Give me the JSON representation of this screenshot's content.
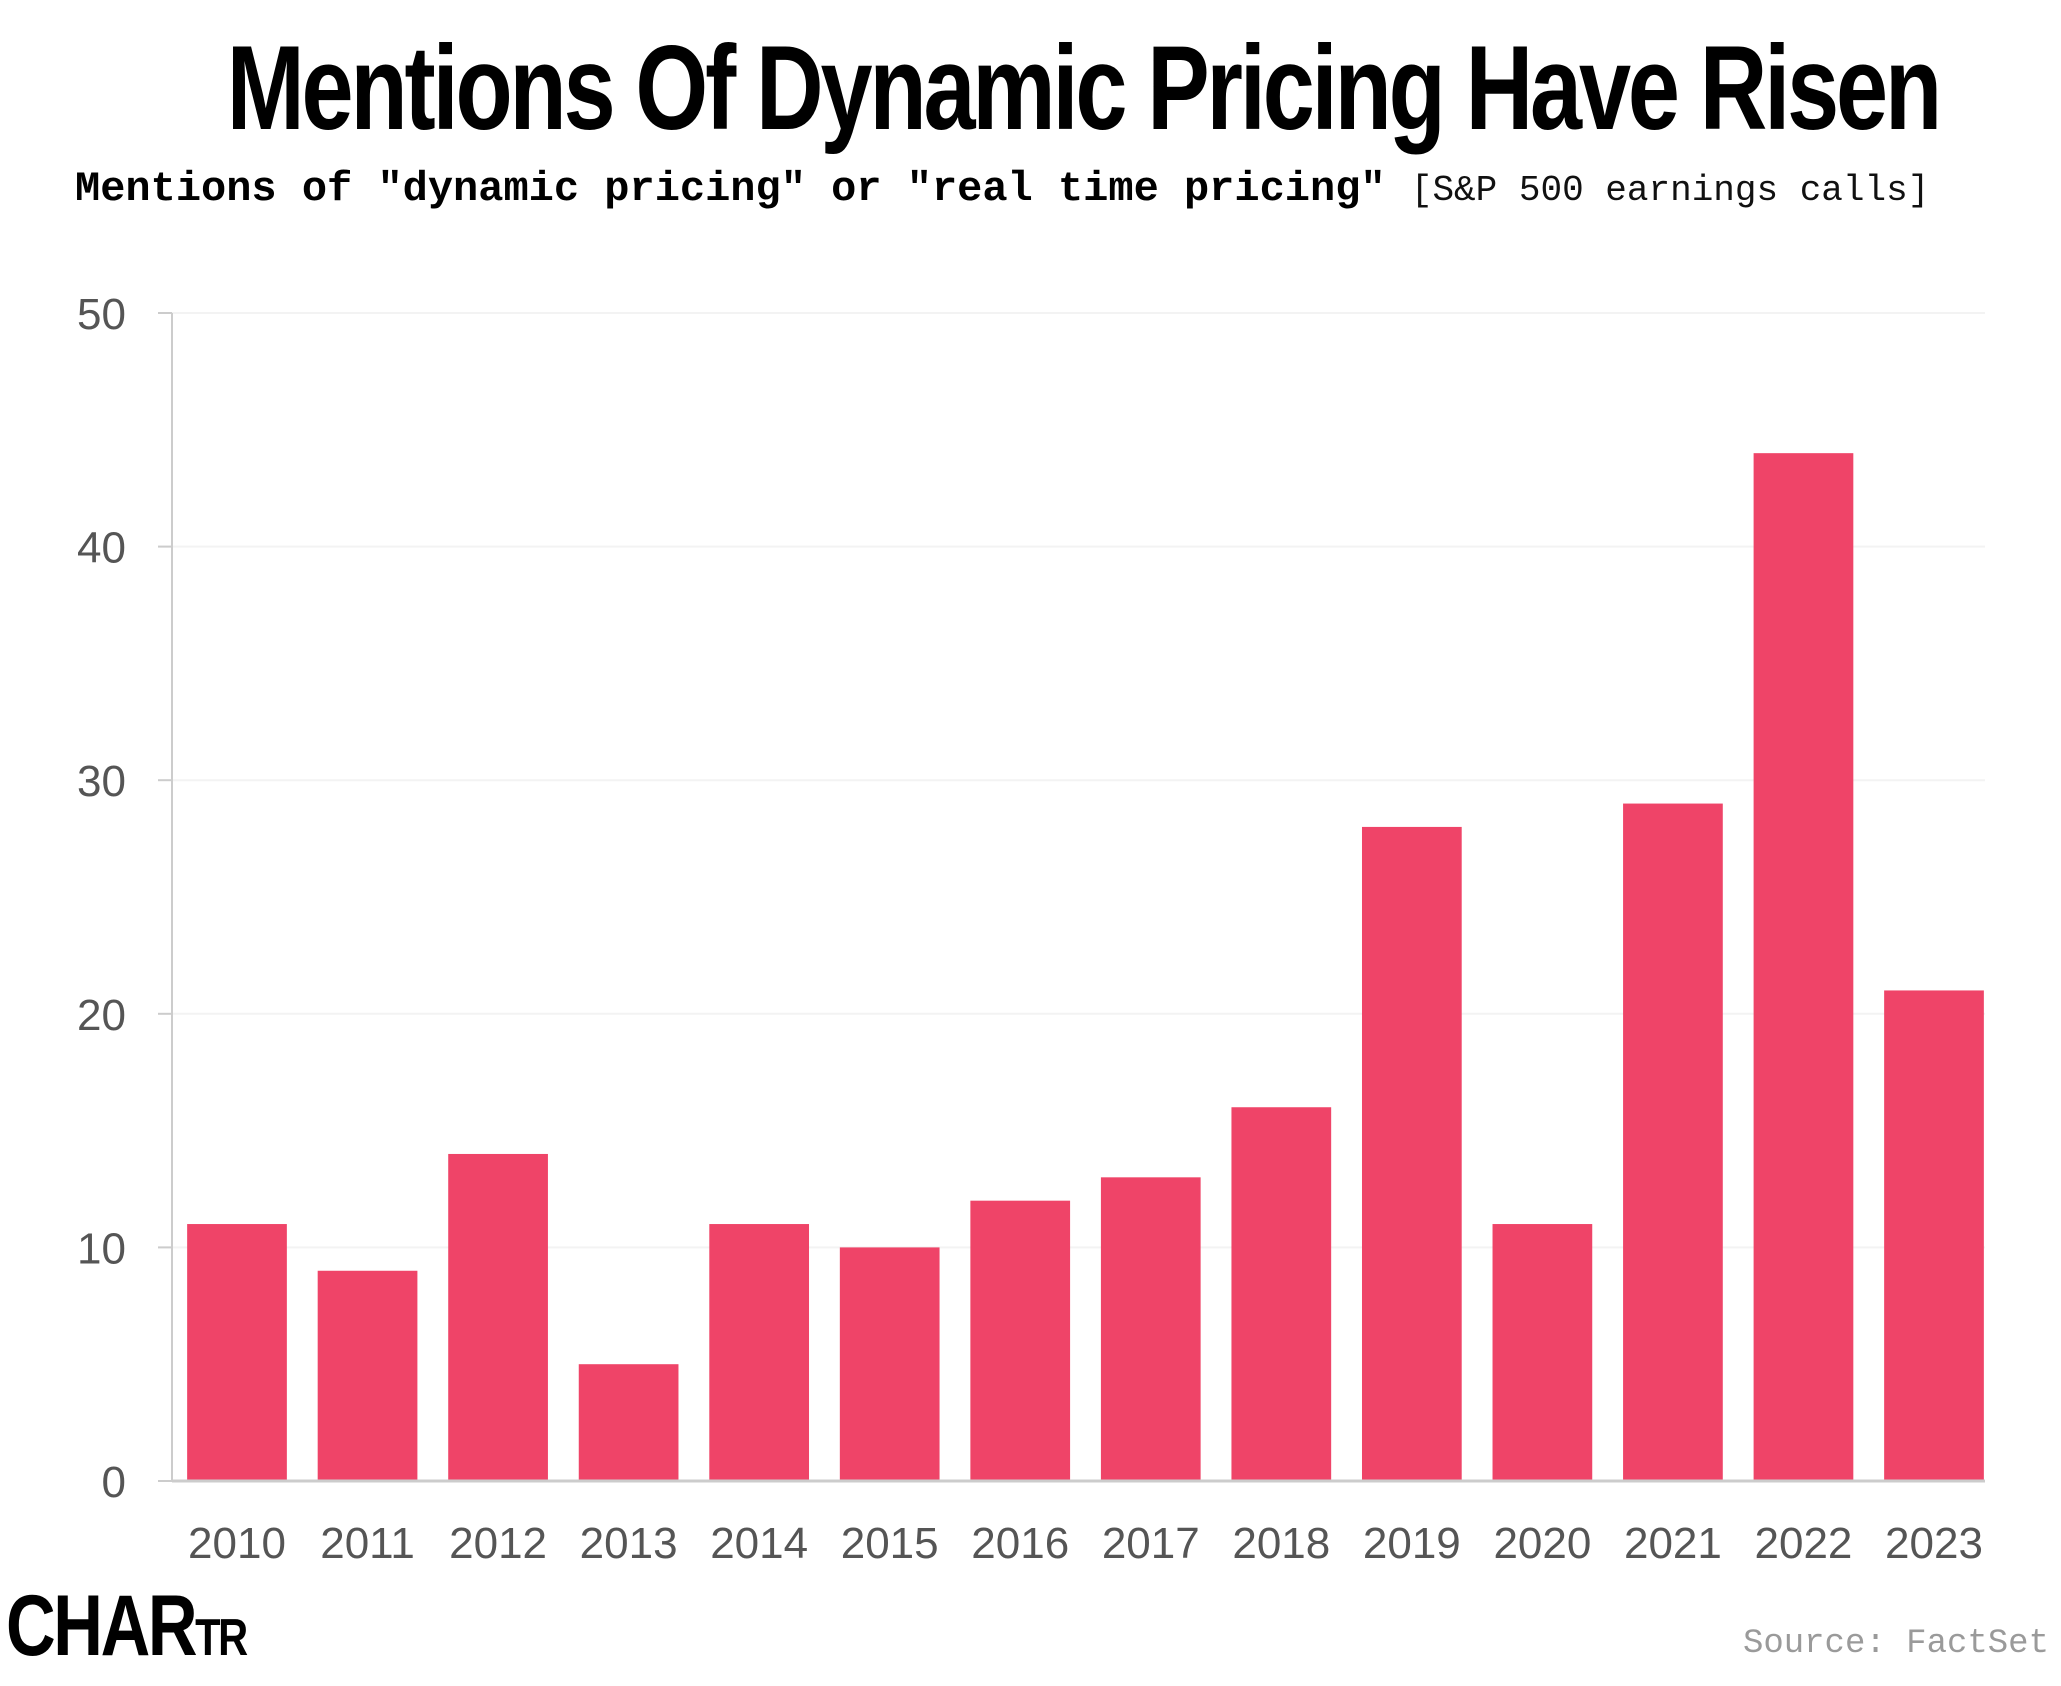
{
  "title": "Mentions Of Dynamic Pricing Have Risen",
  "subtitle": {
    "main": "Mentions of \"dynamic pricing\" or \"real time pricing\"",
    "note": "[S&P 500 earnings calls]"
  },
  "source": "Source: FactSet",
  "logo": {
    "big": "CHAR",
    "small": "TR"
  },
  "colors": {
    "bar": "#EF4468",
    "grid": "#f3f3f3",
    "axis": "#cccccc",
    "tick_text": "#555555"
  },
  "chart_data": {
    "type": "bar",
    "title": "Mentions Of Dynamic Pricing Have Risen",
    "subtitle": "Mentions of \"dynamic pricing\" or \"real time pricing\" [S&P 500 earnings calls]",
    "xlabel": "",
    "ylabel": "",
    "categories": [
      "2010",
      "2011",
      "2012",
      "2013",
      "2014",
      "2015",
      "2016",
      "2017",
      "2018",
      "2019",
      "2020",
      "2021",
      "2022",
      "2023"
    ],
    "values": [
      11,
      9,
      14,
      5,
      11,
      10,
      12,
      13,
      16,
      28,
      11,
      29,
      44,
      21
    ],
    "ylim": [
      0,
      50
    ],
    "yticks": [
      0,
      10,
      20,
      30,
      40,
      50
    ],
    "grid": true,
    "legend": "none"
  }
}
